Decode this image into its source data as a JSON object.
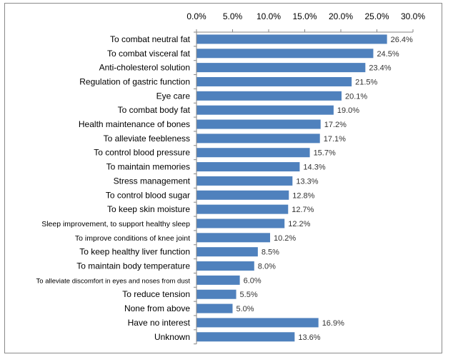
{
  "chart_data": {
    "type": "bar",
    "orientation": "horizontal",
    "title": "",
    "xlabel": "",
    "ylabel": "",
    "xlim": [
      0,
      30
    ],
    "x_ticks": [
      "0.0%",
      "5.0%",
      "10.0%",
      "15.0%",
      "20.0%",
      "25.0%",
      "30.0%"
    ],
    "x_tick_values": [
      0,
      5,
      10,
      15,
      20,
      25,
      30
    ],
    "x_axis_position": "top",
    "grid": false,
    "bar_color": "#4f81bd",
    "categories": [
      "To combat neutral fat",
      "To combat visceral fat",
      "Anti-cholesterol solution",
      "Regulation of gastric function",
      "Eye care",
      "To combat body fat",
      "Health maintenance of bones",
      "To alleviate feebleness",
      "To control blood pressure",
      "To maintain memories",
      "Stress management",
      "To control blood sugar",
      "To keep skin moisture",
      "Sleep improvement, to support healthy sleep",
      "To improve conditions  of knee joint",
      "To keep healthy liver function",
      "To maintain body temperature",
      "To alleviate discomfort in eyes and noses from dust",
      "To reduce tension",
      "None from above",
      "Have no interest",
      "Unknown"
    ],
    "values": [
      26.4,
      24.5,
      23.4,
      21.5,
      20.1,
      19.0,
      17.2,
      17.1,
      15.7,
      14.3,
      13.3,
      12.8,
      12.7,
      12.2,
      10.2,
      8.5,
      8.0,
      6.0,
      5.5,
      5.0,
      16.9,
      13.6
    ],
    "value_labels": [
      "26.4%",
      "24.5%",
      "23.4%",
      "21.5%",
      "20.1%",
      "19.0%",
      "17.2%",
      "17.1%",
      "15.7%",
      "14.3%",
      "13.3%",
      "12.8%",
      "12.7%",
      "12.2%",
      "10.2%",
      "8.5%",
      "8.0%",
      "6.0%",
      "5.5%",
      "5.0%",
      "16.9%",
      "13.6%"
    ]
  }
}
